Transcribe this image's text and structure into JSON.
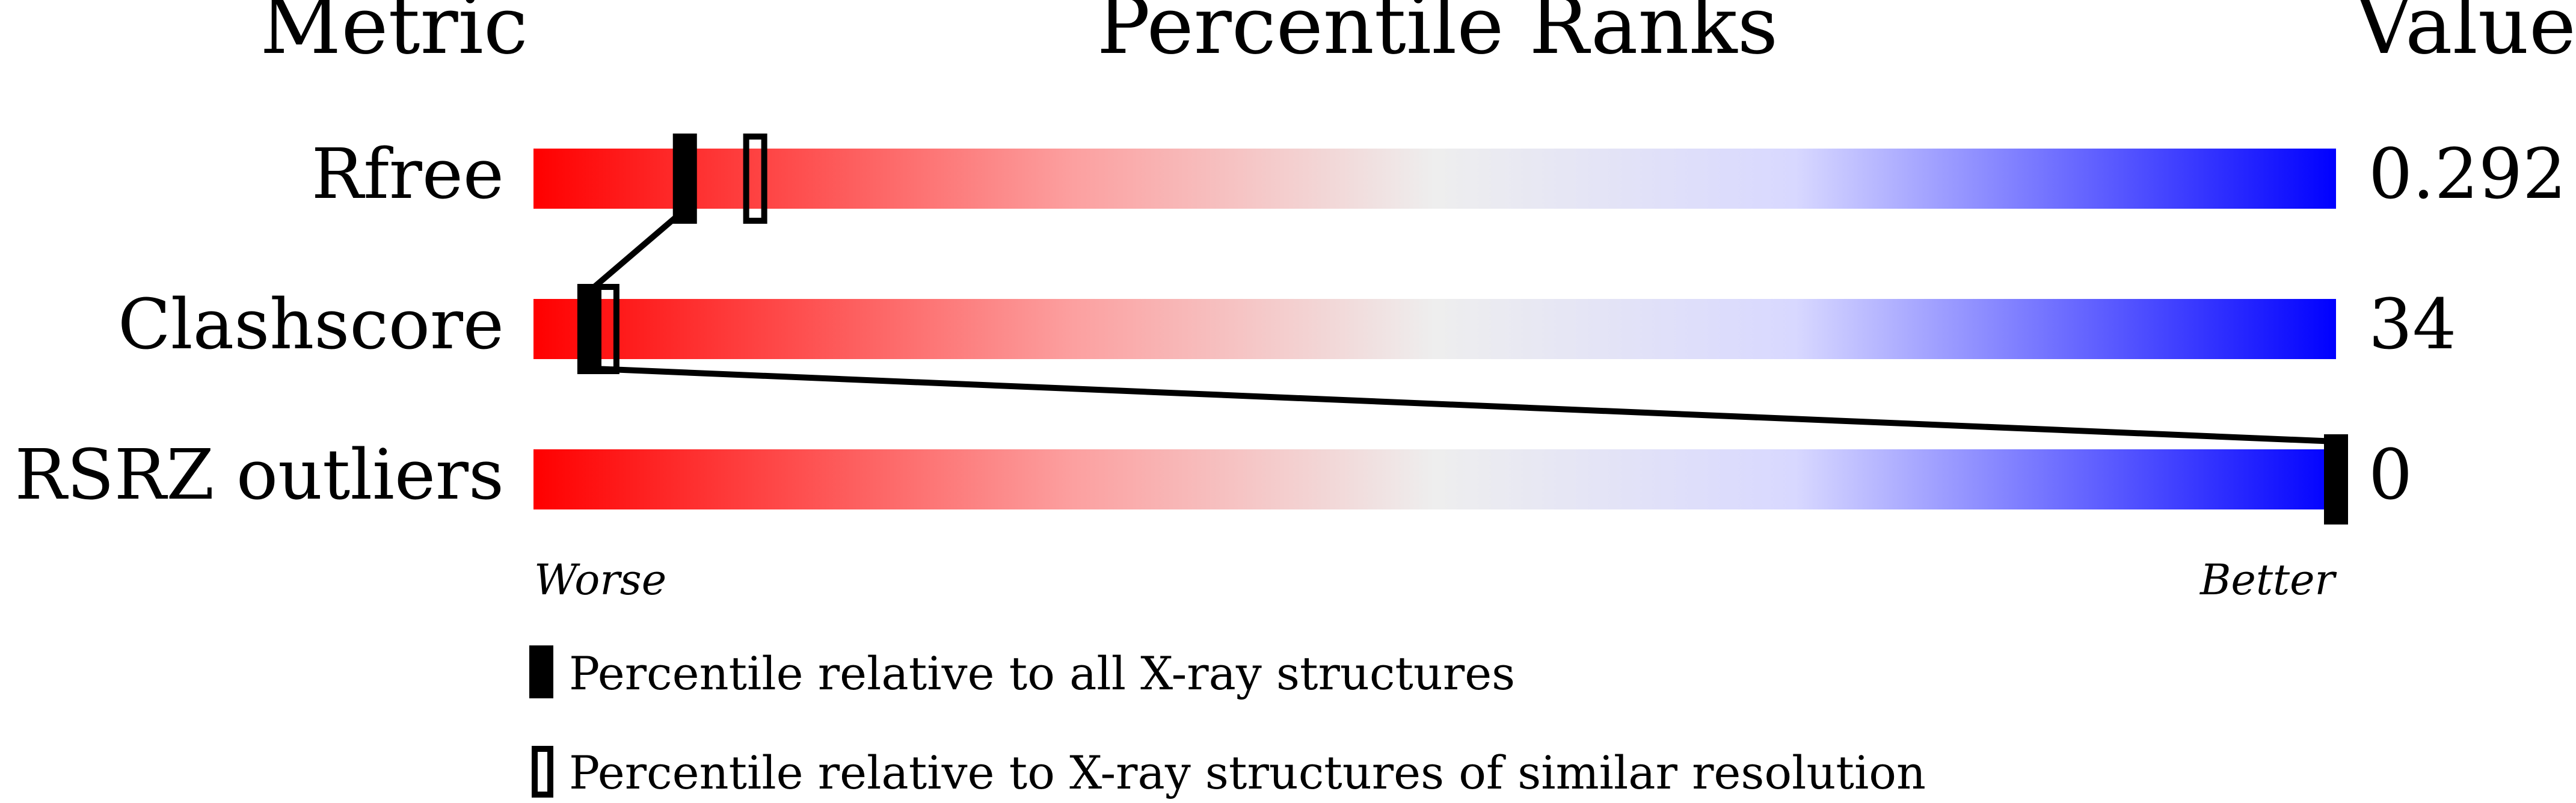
{
  "chart_data": {
    "type": "percentile-slider",
    "headers": {
      "metric": "Metric",
      "ranks": "Percentile Ranks",
      "value": "Value"
    },
    "axis": {
      "left_label": "Worse",
      "right_label": "Better",
      "range": [
        0,
        100
      ]
    },
    "gradient_colors": [
      "#ff0000",
      "#eeeeee",
      "#0000ff"
    ],
    "rows": [
      {
        "metric": "Rfree",
        "value": "0.292",
        "percentile_all": 8.4,
        "percentile_similar": 12.3
      },
      {
        "metric": "Clashscore",
        "value": "34",
        "percentile_all": 3.1,
        "percentile_similar": 4.1
      },
      {
        "metric": "RSRZ outliers",
        "value": "0",
        "percentile_all": 100,
        "percentile_similar": null
      }
    ],
    "legend": [
      {
        "marker": "filled",
        "label": "Percentile relative to all X-ray structures"
      },
      {
        "marker": "open",
        "label": "Percentile relative to X-ray structures of similar resolution"
      }
    ]
  }
}
